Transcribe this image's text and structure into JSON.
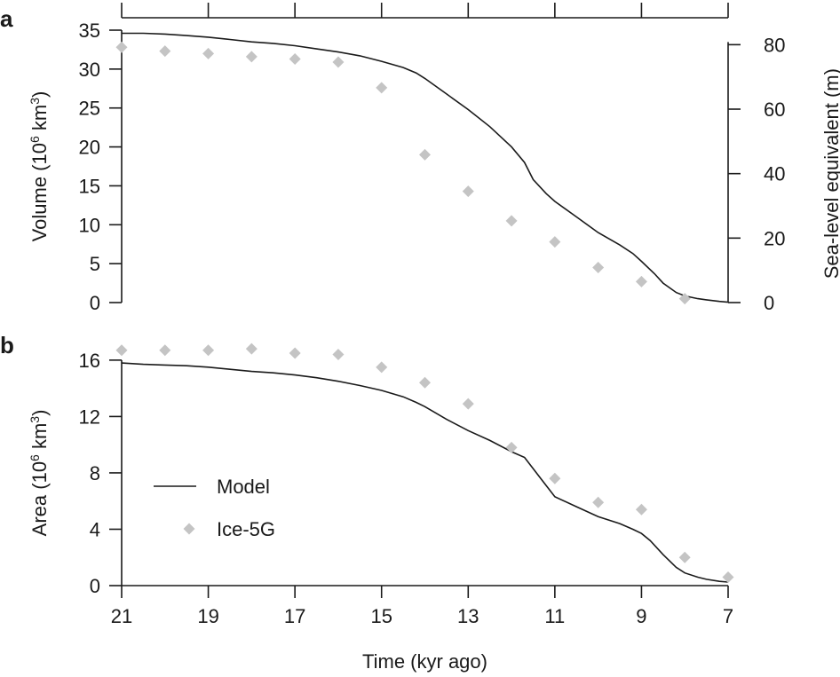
{
  "chart_data": [
    {
      "panel": "a",
      "type": "line",
      "xlabel": "",
      "ylabel": [
        "Volume (10",
        "6",
        " km",
        "3",
        ")"
      ],
      "y2label": "Sea-level equivalent (m)",
      "xlim": [
        21,
        7
      ],
      "ylim": [
        0,
        35
      ],
      "y2lim": [
        0,
        84.5
      ],
      "xticks": [
        21,
        19,
        17,
        15,
        13,
        11,
        9,
        7
      ],
      "yticks": [
        0,
        5,
        10,
        15,
        20,
        25,
        30,
        35
      ],
      "y2ticks": [
        0,
        20,
        40,
        60,
        80
      ],
      "series": [
        {
          "name": "Model",
          "style": "line",
          "x": [
            21,
            20.5,
            20,
            19.5,
            19,
            18.5,
            18,
            17.5,
            17,
            16.5,
            16,
            15.5,
            15,
            14.5,
            14.2,
            14,
            13.5,
            13,
            12.5,
            12,
            11.7,
            11.5,
            11.2,
            11,
            10.5,
            10,
            9.5,
            9.2,
            9,
            8.7,
            8.5,
            8.2,
            8,
            7.7,
            7.5,
            7.2,
            7
          ],
          "y": [
            34.6,
            34.6,
            34.5,
            34.3,
            34.1,
            33.8,
            33.5,
            33.3,
            33.0,
            32.6,
            32.2,
            31.7,
            31.0,
            30.2,
            29.5,
            28.8,
            26.8,
            24.8,
            22.6,
            20.0,
            18.0,
            15.8,
            14.0,
            13.0,
            11.0,
            9.0,
            7.4,
            6.3,
            5.3,
            3.7,
            2.5,
            1.3,
            0.85,
            0.5,
            0.35,
            0.15,
            0.05
          ]
        },
        {
          "name": "Ice-5G",
          "style": "points",
          "x": [
            21,
            20,
            19,
            18,
            17,
            16,
            15,
            14,
            13,
            12,
            11,
            10,
            9,
            8
          ],
          "y": [
            32.8,
            32.3,
            32.0,
            31.6,
            31.3,
            30.9,
            27.6,
            19.0,
            14.3,
            10.5,
            7.8,
            4.5,
            2.7,
            0.5
          ]
        }
      ]
    },
    {
      "panel": "b",
      "type": "line",
      "xlabel": "Time (kyr ago)",
      "ylabel": [
        "Area (10",
        "6",
        " km",
        "3",
        ")"
      ],
      "xlim": [
        21,
        7
      ],
      "ylim": [
        0,
        17
      ],
      "xticks": [
        21,
        19,
        17,
        15,
        13,
        11,
        9,
        7
      ],
      "yticks": [
        0,
        4,
        8,
        12,
        16
      ],
      "legend": {
        "placement": "bottom-left",
        "entries": [
          "Model",
          "Ice-5G"
        ]
      },
      "series": [
        {
          "name": "Model",
          "style": "line",
          "x": [
            21,
            20.5,
            20,
            19.5,
            19,
            18.5,
            18,
            17.5,
            17,
            16.5,
            16,
            15.5,
            15,
            14.5,
            14.2,
            14,
            13.5,
            13,
            12.5,
            12,
            11.7,
            11.5,
            11.3,
            11,
            10.5,
            10,
            9.5,
            9.2,
            9,
            8.8,
            8.5,
            8.2,
            8,
            7.7,
            7.5,
            7.2,
            7
          ],
          "y": [
            15.8,
            15.7,
            15.65,
            15.6,
            15.5,
            15.35,
            15.2,
            15.1,
            14.95,
            14.75,
            14.5,
            14.2,
            13.85,
            13.4,
            13.0,
            12.7,
            11.8,
            11.0,
            10.3,
            9.5,
            9.1,
            8.3,
            7.5,
            6.3,
            5.6,
            4.9,
            4.4,
            4.0,
            3.7,
            3.2,
            2.2,
            1.3,
            0.9,
            0.6,
            0.45,
            0.3,
            0.25
          ]
        },
        {
          "name": "Ice-5G",
          "style": "points",
          "x": [
            21,
            20,
            19,
            18,
            17,
            16,
            15,
            14,
            13,
            12,
            11,
            10,
            9,
            8,
            7
          ],
          "y": [
            16.7,
            16.7,
            16.7,
            16.8,
            16.5,
            16.4,
            15.5,
            14.4,
            12.9,
            9.8,
            7.6,
            5.9,
            5.4,
            2.0,
            0.6
          ]
        }
      ]
    }
  ]
}
